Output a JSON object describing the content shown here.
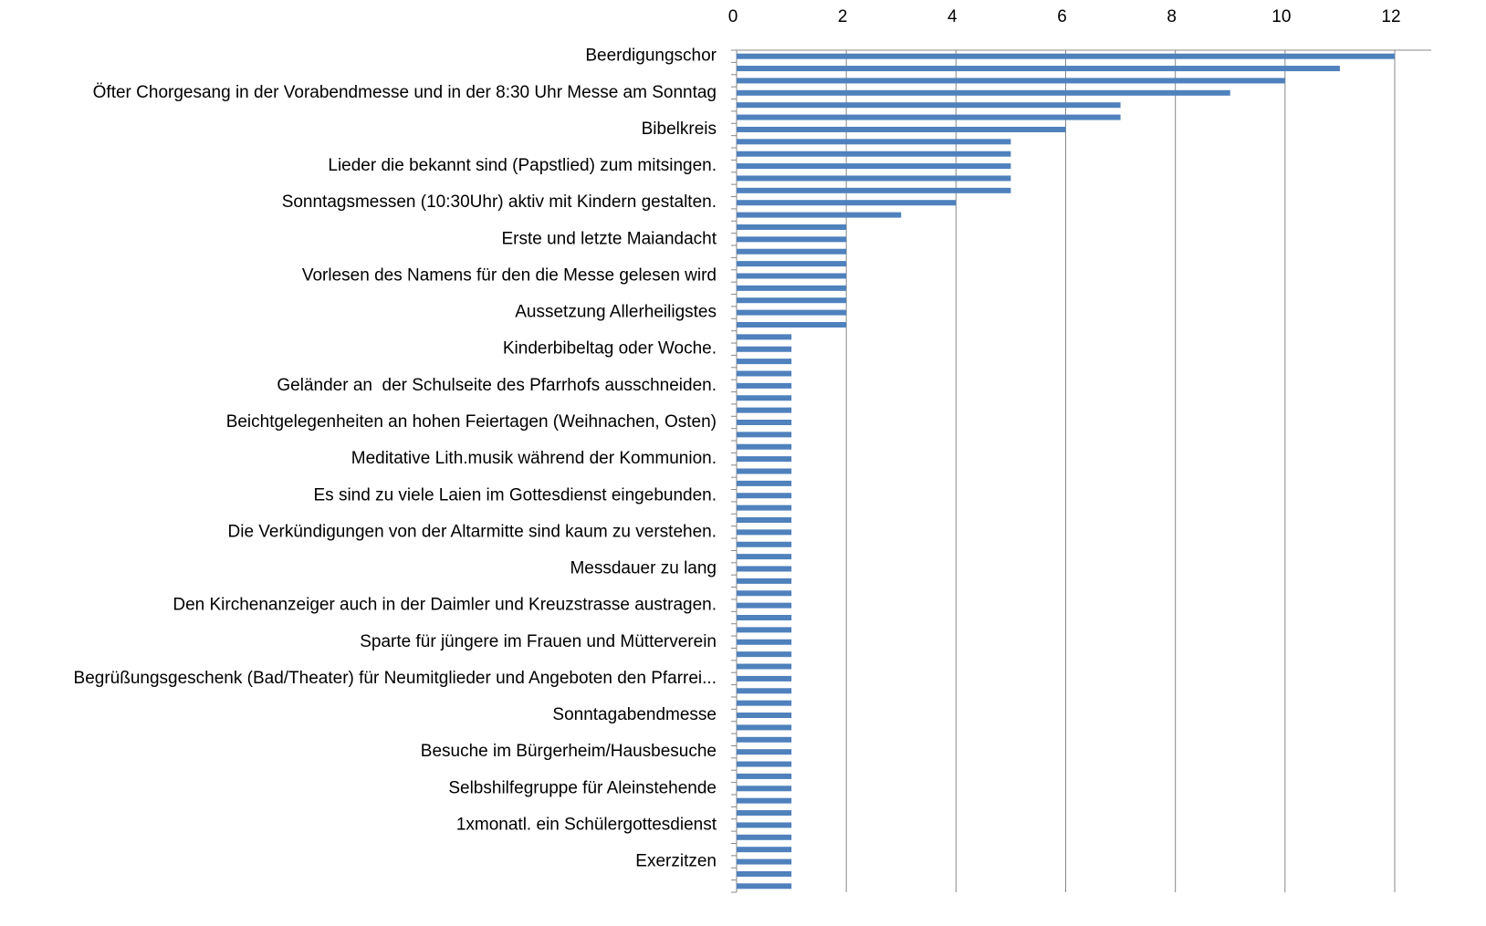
{
  "chart_data": {
    "type": "bar",
    "orientation": "horizontal",
    "color": "#4f81bd",
    "grid": true,
    "xlim": [
      0,
      12
    ],
    "xticks": [
      0,
      2,
      4,
      6,
      8,
      10,
      12
    ],
    "categories": [
      "Beerdigungschor",
      null,
      null,
      "Öfter Chorgesang in der Vorabendmesse und in der 8:30 Uhr Messe am Sonntag",
      null,
      null,
      "Bibelkreis",
      null,
      null,
      "Lieder die bekannt sind (Papstlied) zum mitsingen.",
      null,
      null,
      "Sonntagsmessen (10:30Uhr) aktiv mit Kindern gestalten.",
      null,
      null,
      "Erste und letzte Maiandacht",
      null,
      null,
      "Vorlesen des Namens für den die Messe gelesen wird",
      null,
      null,
      "Aussetzung Allerheiligstes",
      null,
      null,
      "Kinderbibeltag oder Woche.",
      null,
      null,
      "Geländer an  der Schulseite des Pfarrhofs ausschneiden.",
      null,
      null,
      "Beichtgelegenheiten an hohen Feiertagen (Weihnachen, Osten)",
      null,
      null,
      "Meditative Lith.musik während der Kommunion.",
      null,
      null,
      "Es sind zu viele Laien im Gottesdienst eingebunden.",
      null,
      null,
      "Die Verkündigungen von der Altarmitte sind kaum zu verstehen.",
      null,
      null,
      "Messdauer zu lang",
      null,
      null,
      "Den Kirchenanzeiger auch in der Daimler und Kreuzstrasse austragen.",
      null,
      null,
      "Sparte für jüngere im Frauen und Mütterverein",
      null,
      null,
      "Begrüßungsgeschenk (Bad/Theater) für Neumitglieder und Angeboten den Pfarrei...",
      null,
      null,
      "Sonntagabendmesse",
      null,
      null,
      "Besuche im Bürgerheim/Hausbesuche",
      null,
      null,
      "Selbshilfegruppe für Aleinstehende",
      null,
      null,
      "1xmonatl. ein Schülergottesdienst",
      null,
      null,
      "Exerzitzen",
      null,
      null
    ],
    "values": [
      12,
      11,
      10,
      9,
      7,
      7,
      6,
      5,
      5,
      5,
      5,
      5,
      4,
      3,
      2,
      2,
      2,
      2,
      2,
      2,
      2,
      2,
      2,
      1,
      1,
      1,
      1,
      1,
      1,
      1,
      1,
      1,
      1,
      1,
      1,
      1,
      1,
      1,
      1,
      1,
      1,
      1,
      1,
      1,
      1,
      1,
      1,
      1,
      1,
      1,
      1,
      1,
      1,
      1,
      1,
      1,
      1,
      1,
      1,
      1,
      1,
      1,
      1,
      1,
      1,
      1,
      1,
      1,
      1
    ]
  }
}
